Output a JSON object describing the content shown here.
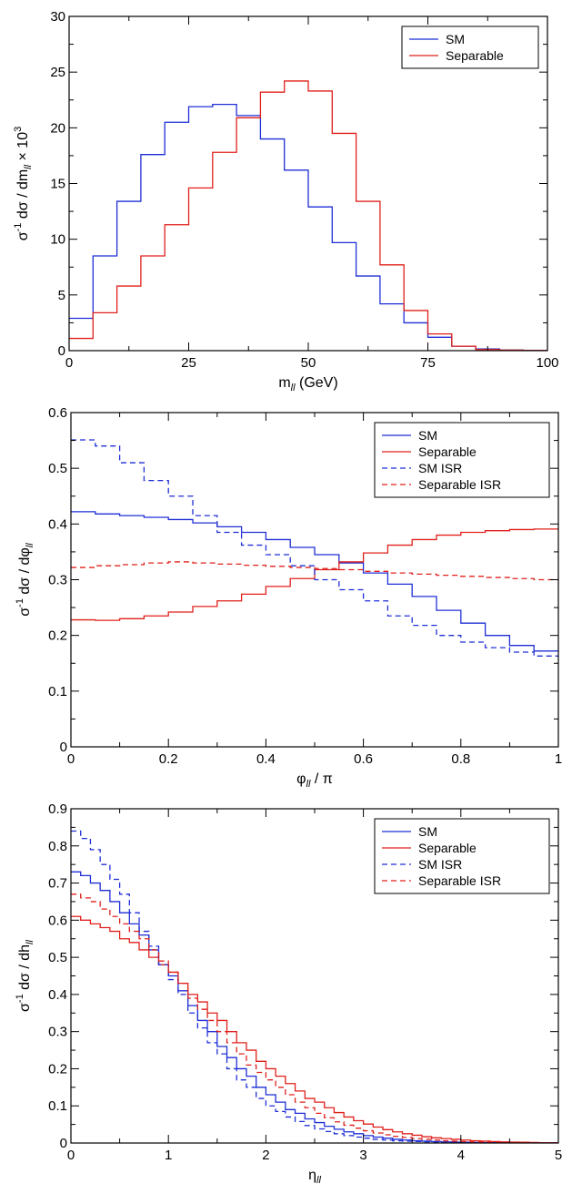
{
  "chart_data": [
    {
      "type": "line",
      "step": true,
      "xlabel_main": "m",
      "xlabel_sub": "ll",
      "xlabel_rest": " (GeV)",
      "ylabel_html": [
        "σ",
        "-1",
        " dσ / dm",
        "ll",
        " × 10",
        "3"
      ],
      "xlim": [
        0,
        100
      ],
      "ylim": [
        0,
        30
      ],
      "xticks": [
        0,
        25,
        50,
        75,
        100
      ],
      "xtick_labels": [
        "0",
        "25",
        "50",
        "75",
        "100"
      ],
      "yticks": [
        0,
        5,
        10,
        15,
        20,
        25,
        30
      ],
      "ytick_labels": [
        "0",
        "5",
        "10",
        "15",
        "20",
        "25",
        "30"
      ],
      "legend_position": "top-right",
      "bin_edges": [
        0,
        5,
        10,
        15,
        20,
        25,
        30,
        35,
        40,
        45,
        50,
        55,
        60,
        65,
        70,
        75,
        80,
        85,
        90,
        95,
        100
      ],
      "series": [
        {
          "name": "SM",
          "color": "#1f2fd6",
          "dash": false,
          "values": [
            2.9,
            8.5,
            13.4,
            17.6,
            20.5,
            21.9,
            22.1,
            21.1,
            19.0,
            16.2,
            12.9,
            9.7,
            6.7,
            4.2,
            2.5,
            1.2,
            0.4,
            0.15,
            0.05,
            0.02
          ]
        },
        {
          "name": "Separable",
          "color": "#e0201b",
          "dash": false,
          "values": [
            1.1,
            3.4,
            5.8,
            8.5,
            11.3,
            14.6,
            17.8,
            20.9,
            23.2,
            24.2,
            23.3,
            19.5,
            13.4,
            7.7,
            3.6,
            1.5,
            0.4,
            0.1,
            0.05,
            0.02
          ]
        }
      ]
    },
    {
      "type": "line",
      "step": true,
      "xlabel_main": "φ",
      "xlabel_sub": "ll",
      "xlabel_rest": " / π",
      "ylabel_html": [
        "σ",
        "-1",
        " dσ / dφ",
        "ll",
        "",
        ""
      ],
      "xlim": [
        0,
        1
      ],
      "ylim": [
        0,
        0.6
      ],
      "xticks": [
        0,
        0.2,
        0.4,
        0.6,
        0.8,
        1
      ],
      "xtick_labels": [
        "0",
        "0.2",
        "0.4",
        "0.6",
        "0.8",
        "1"
      ],
      "yticks": [
        0,
        0.1,
        0.2,
        0.3,
        0.4,
        0.5,
        0.6
      ],
      "ytick_labels": [
        "0",
        "0.1",
        "0.2",
        "0.3",
        "0.4",
        "0.5",
        "0.6"
      ],
      "legend_position": "top-right",
      "bin_edges": [
        0,
        0.05,
        0.1,
        0.15,
        0.2,
        0.25,
        0.3,
        0.35,
        0.4,
        0.45,
        0.5,
        0.55,
        0.6,
        0.65,
        0.7,
        0.75,
        0.8,
        0.85,
        0.9,
        0.95,
        1.0
      ],
      "series": [
        {
          "name": "SM",
          "color": "#1f2fd6",
          "dash": false,
          "values": [
            0.422,
            0.418,
            0.415,
            0.412,
            0.408,
            0.402,
            0.395,
            0.385,
            0.372,
            0.358,
            0.345,
            0.33,
            0.312,
            0.292,
            0.27,
            0.245,
            0.222,
            0.2,
            0.182,
            0.172
          ]
        },
        {
          "name": "Separable",
          "color": "#e0201b",
          "dash": false,
          "values": [
            0.228,
            0.227,
            0.23,
            0.235,
            0.242,
            0.252,
            0.262,
            0.274,
            0.288,
            0.302,
            0.318,
            0.332,
            0.348,
            0.362,
            0.372,
            0.38,
            0.385,
            0.388,
            0.39,
            0.391
          ]
        },
        {
          "name": "SM ISR",
          "color": "#1f2fd6",
          "dash": true,
          "values": [
            0.551,
            0.54,
            0.51,
            0.478,
            0.45,
            0.415,
            0.385,
            0.362,
            0.345,
            0.325,
            0.3,
            0.282,
            0.262,
            0.235,
            0.218,
            0.2,
            0.188,
            0.178,
            0.17,
            0.163
          ]
        },
        {
          "name": "Separable ISR",
          "color": "#e0201b",
          "dash": true,
          "values": [
            0.322,
            0.325,
            0.327,
            0.33,
            0.332,
            0.33,
            0.328,
            0.326,
            0.324,
            0.322,
            0.32,
            0.318,
            0.315,
            0.312,
            0.31,
            0.308,
            0.306,
            0.304,
            0.302,
            0.3
          ]
        }
      ]
    },
    {
      "type": "line",
      "step": true,
      "xlabel_main": "η",
      "xlabel_sub": "ll",
      "xlabel_rest": "",
      "ylabel_html": [
        "σ",
        "-1",
        " dσ / dh",
        "ll",
        "",
        ""
      ],
      "xlim": [
        0,
        5
      ],
      "ylim": [
        0,
        0.9
      ],
      "xticks": [
        0,
        1,
        2,
        3,
        4,
        5
      ],
      "xtick_labels": [
        "0",
        "1",
        "2",
        "3",
        "4",
        "5"
      ],
      "yticks": [
        0,
        0.1,
        0.2,
        0.3,
        0.4,
        0.5,
        0.6,
        0.7,
        0.8,
        0.9
      ],
      "ytick_labels": [
        "0",
        "0.1",
        "0.2",
        "0.3",
        "0.4",
        "0.5",
        "0.6",
        "0.7",
        "0.8",
        "0.9"
      ],
      "legend_position": "top-right",
      "bin_edges": [
        0,
        0.1,
        0.2,
        0.3,
        0.4,
        0.5,
        0.6,
        0.7,
        0.8,
        0.9,
        1.0,
        1.1,
        1.2,
        1.3,
        1.4,
        1.5,
        1.6,
        1.7,
        1.8,
        1.9,
        2.0,
        2.1,
        2.2,
        2.3,
        2.4,
        2.5,
        2.6,
        2.7,
        2.8,
        2.9,
        3.0,
        3.1,
        3.2,
        3.3,
        3.4,
        3.5,
        3.6,
        3.7,
        3.8,
        3.9,
        4.0,
        4.1,
        4.2,
        4.3,
        4.4,
        4.5,
        4.6,
        4.7,
        4.8,
        4.9,
        5.0
      ],
      "series": [
        {
          "name": "SM",
          "color": "#1f2fd6",
          "dash": false,
          "values": [
            0.73,
            0.72,
            0.7,
            0.68,
            0.65,
            0.62,
            0.59,
            0.56,
            0.52,
            0.48,
            0.45,
            0.41,
            0.37,
            0.33,
            0.3,
            0.26,
            0.23,
            0.2,
            0.18,
            0.15,
            0.13,
            0.11,
            0.09,
            0.08,
            0.065,
            0.055,
            0.045,
            0.037,
            0.03,
            0.025,
            0.02,
            0.016,
            0.013,
            0.01,
            0.008,
            0.006,
            0.005,
            0.004,
            0.003,
            0.0025,
            0.002,
            0.0015,
            0.001,
            0.001,
            0.0008,
            0.0006,
            0.0005,
            0.0004,
            0.0003,
            0.0002
          ]
        },
        {
          "name": "Separable",
          "color": "#e0201b",
          "dash": false,
          "values": [
            0.61,
            0.6,
            0.59,
            0.58,
            0.57,
            0.55,
            0.54,
            0.52,
            0.5,
            0.48,
            0.46,
            0.43,
            0.4,
            0.38,
            0.35,
            0.33,
            0.3,
            0.27,
            0.25,
            0.22,
            0.2,
            0.18,
            0.16,
            0.14,
            0.12,
            0.11,
            0.095,
            0.082,
            0.07,
            0.06,
            0.051,
            0.043,
            0.036,
            0.03,
            0.025,
            0.021,
            0.017,
            0.014,
            0.012,
            0.01,
            0.008,
            0.006,
            0.005,
            0.004,
            0.003,
            0.0025,
            0.002,
            0.0015,
            0.001,
            0.0008
          ]
        },
        {
          "name": "SM ISR",
          "color": "#1f2fd6",
          "dash": true,
          "values": [
            0.84,
            0.82,
            0.79,
            0.75,
            0.71,
            0.67,
            0.62,
            0.57,
            0.53,
            0.48,
            0.44,
            0.4,
            0.35,
            0.31,
            0.27,
            0.24,
            0.2,
            0.17,
            0.15,
            0.12,
            0.1,
            0.085,
            0.07,
            0.058,
            0.047,
            0.038,
            0.031,
            0.025,
            0.02,
            0.016,
            0.013,
            0.01,
            0.008,
            0.006,
            0.005,
            0.004,
            0.003,
            0.0025,
            0.002,
            0.0015,
            0.001,
            0.0008,
            0.0006,
            0.0005,
            0.0004,
            0.0003,
            0.0002,
            0.0002,
            0.0001,
            0.0001
          ]
        },
        {
          "name": "Separable ISR",
          "color": "#e0201b",
          "dash": true,
          "values": [
            0.67,
            0.66,
            0.65,
            0.63,
            0.61,
            0.59,
            0.57,
            0.55,
            0.52,
            0.49,
            0.46,
            0.43,
            0.39,
            0.36,
            0.33,
            0.3,
            0.27,
            0.24,
            0.21,
            0.19,
            0.17,
            0.15,
            0.13,
            0.11,
            0.095,
            0.08,
            0.068,
            0.057,
            0.048,
            0.04,
            0.033,
            0.027,
            0.022,
            0.018,
            0.015,
            0.012,
            0.01,
            0.008,
            0.006,
            0.005,
            0.004,
            0.003,
            0.0025,
            0.002,
            0.0015,
            0.001,
            0.0008,
            0.0006,
            0.0005,
            0.0004
          ]
        }
      ]
    }
  ]
}
